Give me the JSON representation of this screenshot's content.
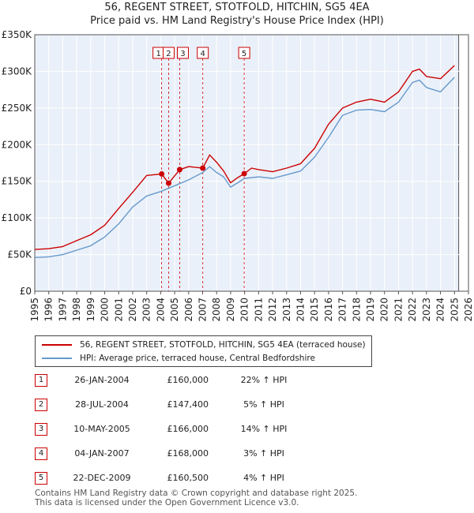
{
  "title_line1": "56, REGENT STREET, STOTFOLD, HITCHIN, SG5 4EA",
  "title_line2": "Price paid vs. HM Land Registry's House Price Index (HPI)",
  "chart_data": {
    "type": "line",
    "title": "56, REGENT STREET, STOTFOLD, HITCHIN, SG5 4EA — Price paid vs. HM Land Registry's House Price Index (HPI)",
    "xlabel": "",
    "ylabel": "",
    "xlim": [
      1995,
      2026
    ],
    "ylim": [
      0,
      350000
    ],
    "x_ticks": [
      1995,
      1996,
      1997,
      1998,
      1999,
      2000,
      2001,
      2002,
      2003,
      2004,
      2005,
      2006,
      2007,
      2008,
      2009,
      2010,
      2011,
      2012,
      2013,
      2014,
      2015,
      2016,
      2017,
      2018,
      2019,
      2020,
      2021,
      2022,
      2023,
      2024,
      2025,
      2026
    ],
    "y_ticks": [
      0,
      50000,
      100000,
      150000,
      200000,
      250000,
      300000,
      350000
    ],
    "y_tick_labels": [
      "£0",
      "£50K",
      "£100K",
      "£150K",
      "£200K",
      "£250K",
      "£300K",
      "£350K"
    ],
    "grid": true,
    "shaded_region": {
      "x": [
        2025.3,
        2026
      ],
      "note": "future/forecast area"
    },
    "series": [
      {
        "name": "56, REGENT STREET, STOTFOLD, HITCHIN, SG5 4EA (terraced house)",
        "color": "#cc0000",
        "x": [
          1995,
          1996,
          1997,
          1998,
          1999,
          2000,
          2001,
          2002,
          2003,
          2004.07,
          2004.57,
          2005.36,
          2006,
          2007.01,
          2007.5,
          2008,
          2008.5,
          2009,
          2009.5,
          2009.97,
          2010.5,
          2011,
          2012,
          2013,
          2014,
          2015,
          2016,
          2017,
          2018,
          2019,
          2020,
          2021,
          2022,
          2022.5,
          2023,
          2024,
          2025
        ],
        "y": [
          57000,
          58000,
          61000,
          69000,
          77000,
          90000,
          113000,
          135000,
          158000,
          160000,
          147400,
          166000,
          170000,
          168000,
          186000,
          176000,
          164000,
          148000,
          155000,
          160500,
          168000,
          166000,
          163000,
          168000,
          174000,
          195000,
          228000,
          250000,
          258000,
          262000,
          258000,
          272000,
          300000,
          303000,
          293000,
          290000,
          308000
        ]
      },
      {
        "name": "HPI: Average price, terraced house, Central Bedfordshire",
        "color": "#6699cc",
        "x": [
          1995,
          1996,
          1997,
          1998,
          1999,
          2000,
          2001,
          2002,
          2003,
          2004,
          2005,
          2006,
          2007,
          2007.5,
          2008,
          2008.5,
          2009,
          2009.5,
          2010,
          2011,
          2012,
          2013,
          2014,
          2015,
          2016,
          2017,
          2018,
          2019,
          2020,
          2021,
          2022,
          2022.5,
          2023,
          2024,
          2025
        ],
        "y": [
          46000,
          47000,
          50000,
          56000,
          62000,
          74000,
          92000,
          115000,
          130000,
          136000,
          144000,
          152000,
          162000,
          170000,
          162000,
          156000,
          142000,
          148000,
          154000,
          156000,
          154000,
          159000,
          164000,
          183000,
          210000,
          240000,
          247000,
          248000,
          245000,
          258000,
          285000,
          288000,
          278000,
          272000,
          292000
        ]
      }
    ],
    "sale_markers": [
      {
        "label": "1",
        "x": 2004.07,
        "y": 160000
      },
      {
        "label": "2",
        "x": 2004.57,
        "y": 147400
      },
      {
        "label": "3",
        "x": 2005.36,
        "y": 166000
      },
      {
        "label": "4",
        "x": 2007.01,
        "y": 168000
      },
      {
        "label": "5",
        "x": 2009.97,
        "y": 160500
      }
    ]
  },
  "legend": {
    "items": [
      {
        "label": "56, REGENT STREET, STOTFOLD, HITCHIN, SG5 4EA (terraced house)",
        "color": "#cc0000"
      },
      {
        "label": "HPI: Average price, terraced house, Central Bedfordshire",
        "color": "#6699cc"
      }
    ]
  },
  "sales": [
    {
      "num": "1",
      "date": "26-JAN-2004",
      "price": "£160,000",
      "hpi": "22% ↑ HPI"
    },
    {
      "num": "2",
      "date": "28-JUL-2004",
      "price": "£147,400",
      "hpi": "5% ↑ HPI"
    },
    {
      "num": "3",
      "date": "10-MAY-2005",
      "price": "£166,000",
      "hpi": "14% ↑ HPI"
    },
    {
      "num": "4",
      "date": "04-JAN-2007",
      "price": "£168,000",
      "hpi": "3% ↑ HPI"
    },
    {
      "num": "5",
      "date": "22-DEC-2009",
      "price": "£160,500",
      "hpi": "4% ↑ HPI"
    }
  ],
  "footer": {
    "line1": "Contains HM Land Registry data © Crown copyright and database right 2025.",
    "line2": "This data is licensed under the Open Government Licence v3.0."
  }
}
